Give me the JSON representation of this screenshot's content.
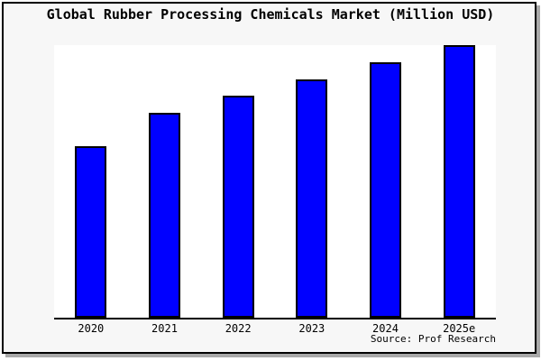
{
  "chart_data": {
    "type": "bar",
    "title": "Global Rubber Processing Chemicals Market (Million USD)",
    "categories": [
      "2020",
      "2021",
      "2022",
      "2023",
      "2024",
      "2025e"
    ],
    "values": [
      190,
      227,
      246,
      264,
      283,
      302
    ],
    "values_note": "y-axis has no tick labels in the figure; values are relative bar heights (pixels), 2025e bar reaches the top of the plot area",
    "xlabel": "",
    "ylabel": "",
    "y_axis_ticks": "none",
    "grid": false,
    "legend": false,
    "source": "Source: Prof Research",
    "bar_color": "#0000ff",
    "bar_border_color": "#000000",
    "plot_background": "#ffffff",
    "figure_background": "#f7f7f7",
    "frame_border_color": "#000000",
    "frame_shadow_color": "#a9a9a9",
    "text_color": "#000000"
  }
}
